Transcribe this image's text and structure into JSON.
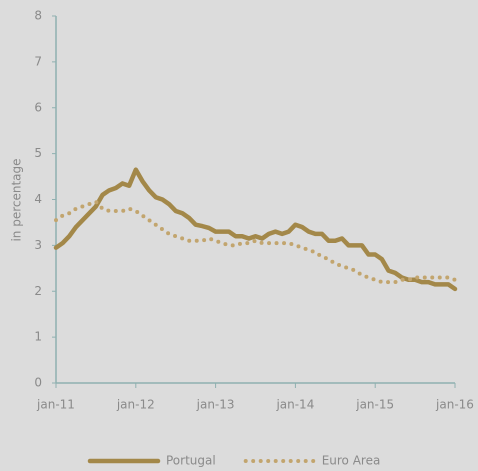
{
  "chart_data": {
    "type": "line",
    "y_label": "in percentage",
    "categories": [
      "jan-11",
      null,
      null,
      null,
      null,
      null,
      null,
      null,
      null,
      null,
      null,
      null,
      "jan-12",
      null,
      null,
      null,
      null,
      null,
      null,
      null,
      null,
      null,
      null,
      null,
      "jan-13",
      null,
      null,
      null,
      null,
      null,
      null,
      null,
      null,
      null,
      null,
      null,
      "jan-14",
      null,
      null,
      null,
      null,
      null,
      null,
      null,
      null,
      null,
      null,
      null,
      "jan-15",
      null,
      null,
      null,
      null,
      null,
      null,
      null,
      null,
      null,
      null,
      null,
      "jan-16"
    ],
    "series": [
      {
        "name": "Portugal",
        "color": "#a38849",
        "style": "solid",
        "values": [
          2.95,
          3.05,
          3.2,
          3.4,
          3.55,
          3.7,
          3.85,
          4.1,
          4.2,
          4.25,
          4.35,
          4.3,
          4.65,
          4.4,
          4.2,
          4.05,
          4.0,
          3.9,
          3.75,
          3.7,
          3.6,
          3.45,
          3.42,
          3.38,
          3.3,
          3.3,
          3.3,
          3.2,
          3.2,
          3.15,
          3.2,
          3.15,
          3.25,
          3.3,
          3.25,
          3.3,
          3.45,
          3.4,
          3.3,
          3.25,
          3.25,
          3.1,
          3.1,
          3.15,
          3.0,
          3.0,
          3.0,
          2.8,
          2.8,
          2.7,
          2.45,
          2.4,
          2.3,
          2.25,
          2.25,
          2.2,
          2.2,
          2.15,
          2.15,
          2.15,
          2.05
        ]
      },
      {
        "name": "Euro Area",
        "color": "#c2a56e",
        "style": "dotted",
        "values": [
          3.55,
          3.65,
          3.7,
          3.8,
          3.85,
          3.9,
          3.95,
          3.8,
          3.75,
          3.75,
          3.75,
          3.8,
          3.75,
          3.65,
          3.55,
          3.45,
          3.35,
          3.25,
          3.2,
          3.15,
          3.1,
          3.1,
          3.1,
          3.15,
          3.1,
          3.05,
          3.0,
          3.0,
          3.05,
          3.05,
          3.1,
          3.05,
          3.05,
          3.05,
          3.05,
          3.05,
          3.0,
          2.95,
          2.9,
          2.85,
          2.75,
          2.7,
          2.6,
          2.55,
          2.5,
          2.45,
          2.35,
          2.3,
          2.25,
          2.2,
          2.2,
          2.2,
          2.25,
          2.25,
          2.3,
          2.3,
          2.3,
          2.3,
          2.3,
          2.3,
          2.25
        ]
      }
    ],
    "ylim": [
      0,
      8
    ],
    "yticks": [
      0,
      1,
      2,
      3,
      4,
      5,
      6,
      7,
      8
    ],
    "grid": false,
    "legend": "bottom"
  }
}
